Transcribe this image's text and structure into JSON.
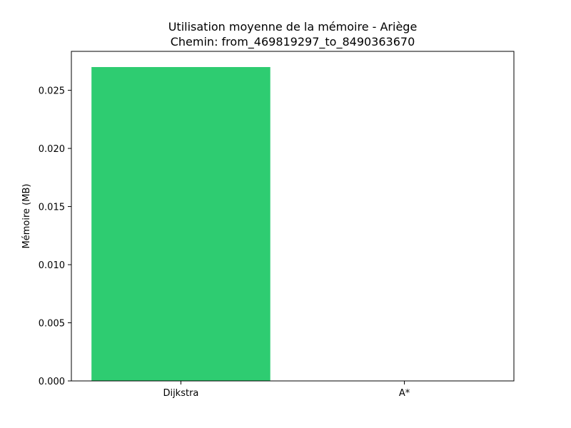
{
  "chart_data": {
    "type": "bar",
    "title": "Utilisation moyenne de la mémoire - Ariège",
    "subtitle": "Chemin: from_469819297_to_8490363670",
    "xlabel": "",
    "ylabel": "Mémoire (MB)",
    "categories": [
      "Dijkstra",
      "A*"
    ],
    "values": [
      0.027,
      0.0
    ],
    "colors": [
      "#2ecc71",
      "#2ecc71"
    ],
    "ylim": [
      0,
      0.02835
    ],
    "yticks": [
      0.0,
      0.005,
      0.01,
      0.015,
      0.02,
      0.025
    ],
    "ytick_labels": [
      "0.000",
      "0.005",
      "0.010",
      "0.015",
      "0.020",
      "0.025"
    ],
    "grid": false,
    "legend": "none"
  }
}
